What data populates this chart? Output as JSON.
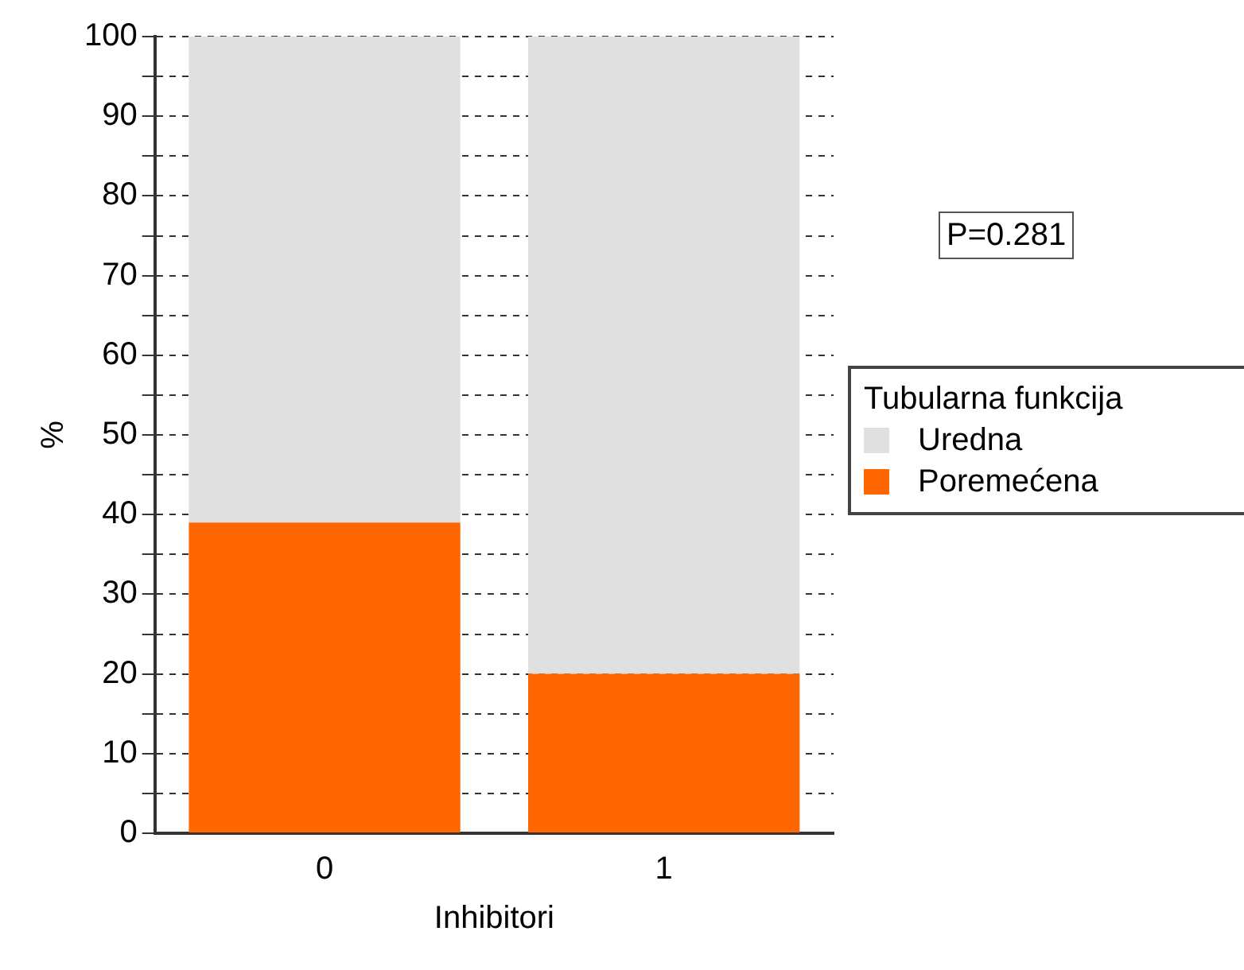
{
  "chart_data": {
    "type": "bar",
    "stacked": true,
    "xlabel": "Inhibitori",
    "ylabel": "%",
    "legend_title": "Tubularna funkcija",
    "categories": [
      "0",
      "1"
    ],
    "series": [
      {
        "name": "Poremećena",
        "color": "#ff6600",
        "values": [
          39,
          20
        ]
      },
      {
        "name": "Uredna",
        "color": "#e0e0e0",
        "values": [
          61,
          80
        ]
      }
    ],
    "ylim": [
      0,
      100
    ],
    "yticks": [
      0,
      {
        "value": 5,
        "label": null
      },
      10,
      {
        "value": 15,
        "label": null
      },
      20,
      {
        "value": 25,
        "label": null
      },
      30,
      {
        "value": 35,
        "label": null
      },
      40,
      {
        "value": 45,
        "label": null
      },
      50,
      {
        "value": 55,
        "label": null
      },
      60,
      {
        "value": 65,
        "label": null
      },
      70,
      {
        "value": 75,
        "label": null
      },
      80,
      {
        "value": 85,
        "label": null
      },
      90,
      {
        "value": 95,
        "label": null
      },
      100
    ],
    "grid": "y",
    "legend": "right",
    "annotations": [
      "P=0.281"
    ]
  }
}
